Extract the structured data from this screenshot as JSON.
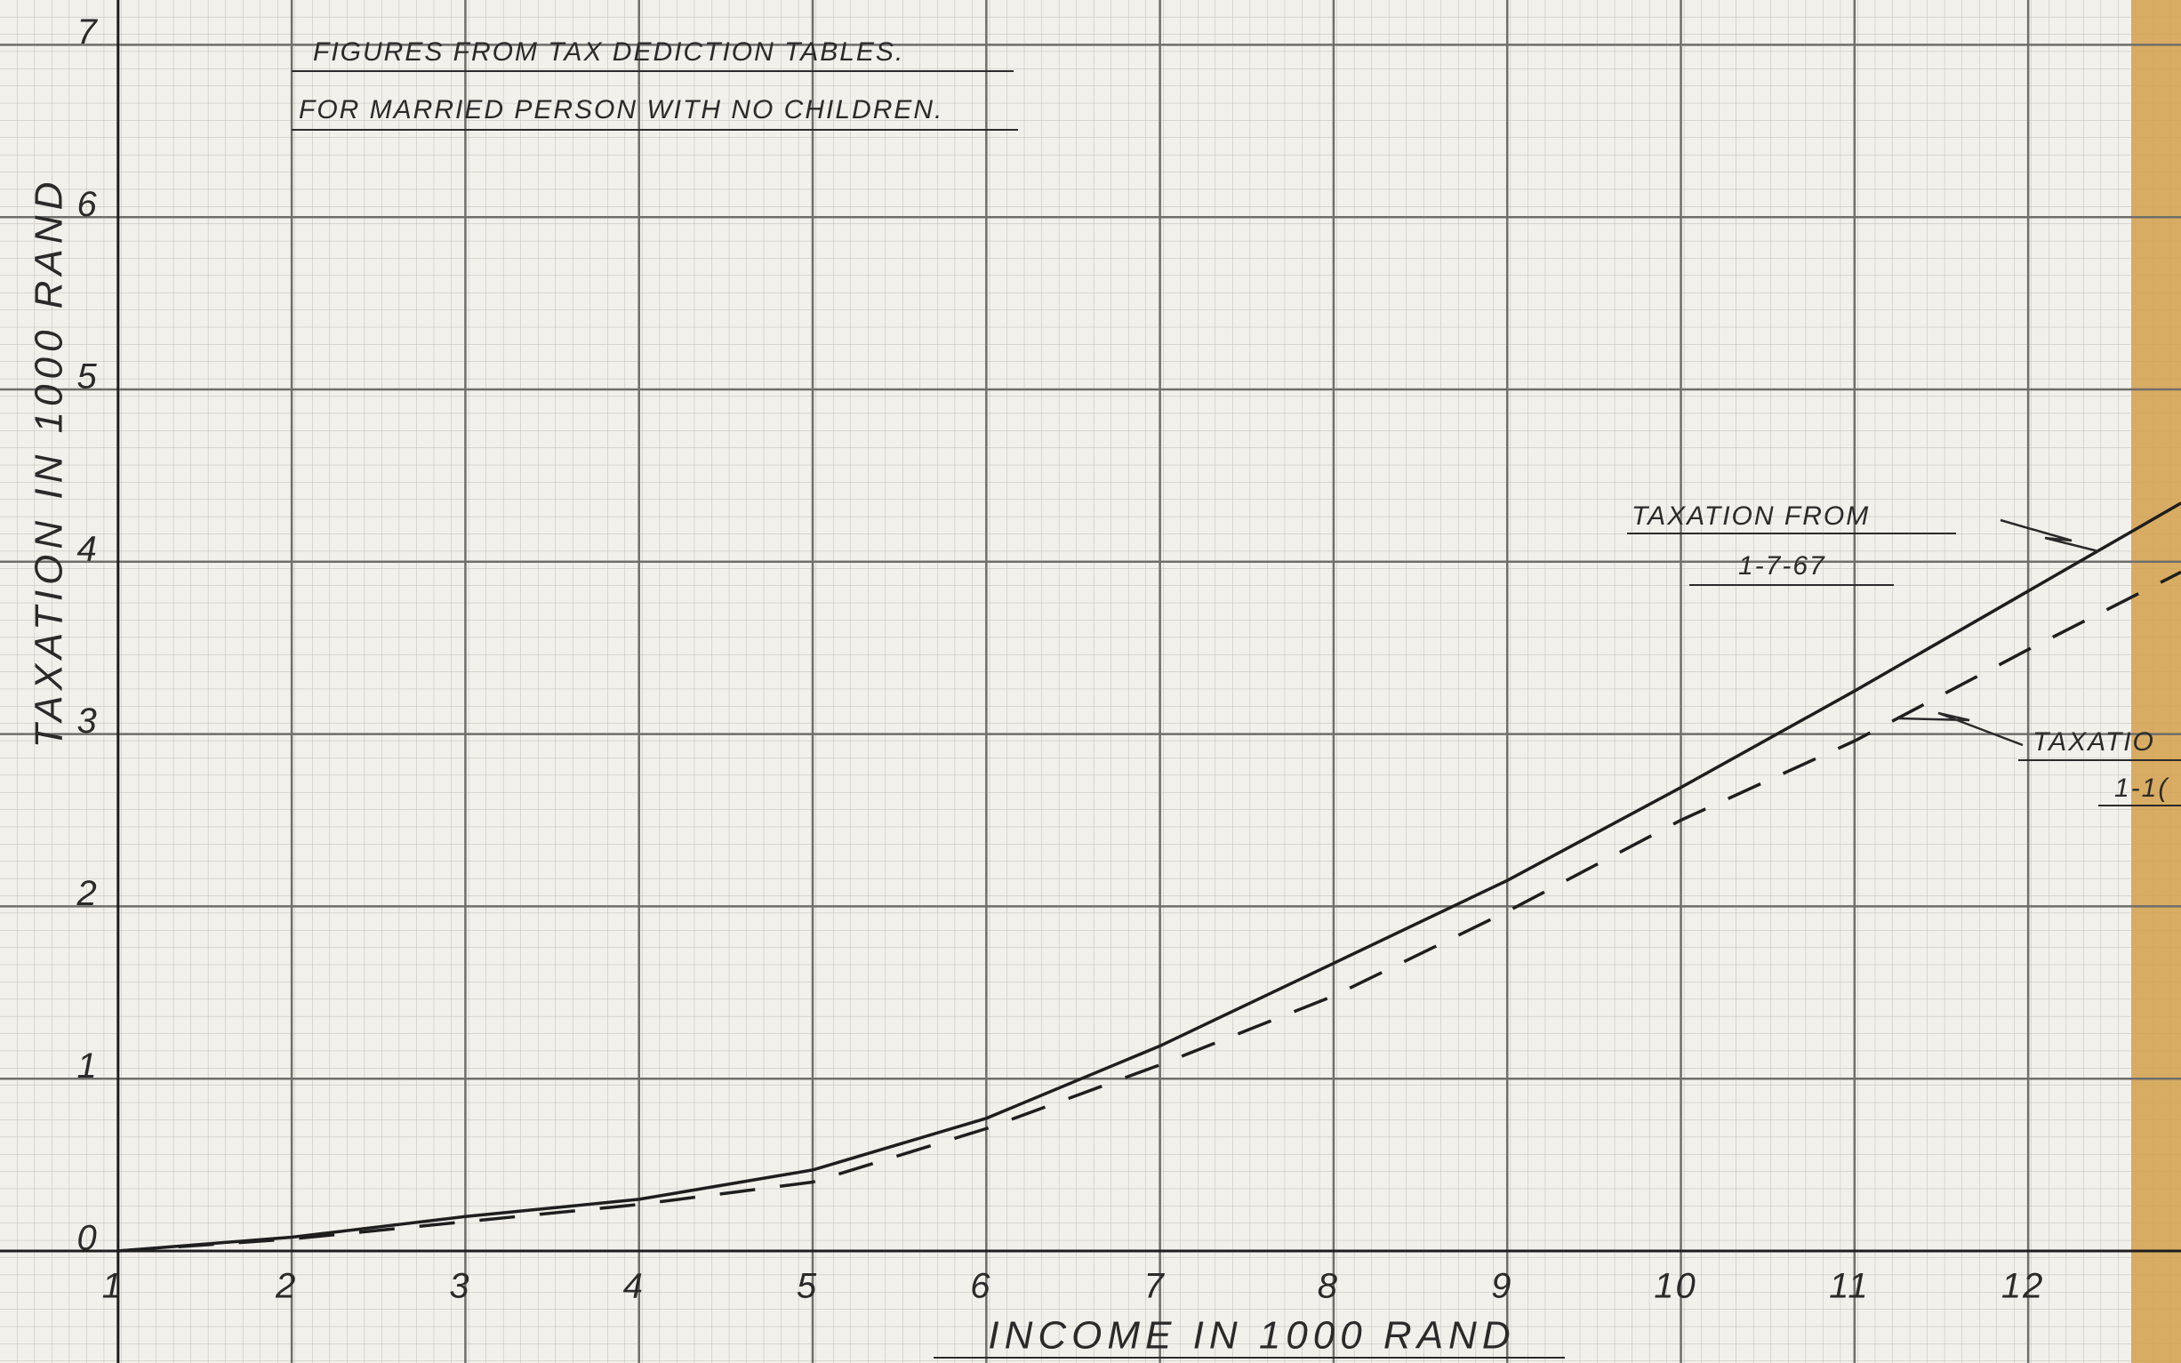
{
  "chart_data": {
    "type": "line",
    "title": "FIGURES FROM TAX DEDICTION TABLES.",
    "subtitle": "FOR MARRIED PERSON WITH NO CHILDREN.",
    "x_label": "INCOME IN 1000 RAND",
    "y_label": "TAXATION IN 1000 RAND",
    "x": [
      1,
      2,
      3,
      4,
      5,
      6,
      7,
      8,
      9,
      10,
      11,
      12,
      12.88
    ],
    "series": [
      {
        "color": "#1e1e1e",
        "style": "solid",
        "values": [
          0,
          0.08,
          0.2,
          0.3,
          0.47,
          0.77,
          1.19,
          1.67,
          2.15,
          2.69,
          3.25,
          3.83,
          4.34
        ]
      },
      {
        "color": "#1e1e1e",
        "style": "dashed",
        "values": [
          0,
          0.07,
          0.17,
          0.27,
          0.4,
          0.71,
          1.08,
          1.48,
          1.97,
          2.5,
          2.96,
          3.49,
          3.94
        ]
      }
    ],
    "annotations": [
      {
        "lines": [
          "TAXATION FROM",
          "1-7-67"
        ]
      },
      {
        "lines": [
          "TAXATIO",
          "1-1("
        ]
      }
    ],
    "xlim": [
      0.32,
      12.88
    ],
    "ylim": [
      -0.65,
      7.26
    ],
    "xticks": [
      1,
      2,
      3,
      4,
      5,
      6,
      7,
      8,
      9,
      10,
      11,
      12
    ],
    "yticks": [
      0,
      1,
      2,
      3,
      4,
      5,
      6,
      7
    ],
    "grid": true
  }
}
